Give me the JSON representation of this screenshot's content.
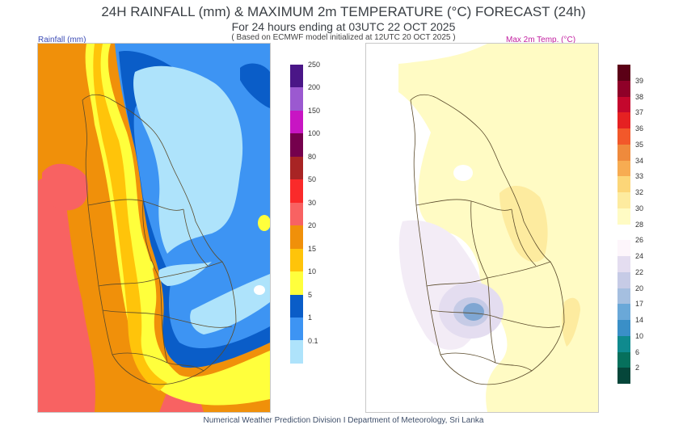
{
  "header": {
    "title": "24H RAINFALL (mm) & MAXIMUM 2m TEMPERATURE (°C) FORECAST (24h)",
    "subtitle": "For 24 hours ending at 03UTC 22 OCT 2025",
    "model_note": "( Based on ECMWF model initialized at 12UTC 20 OCT 2025 )"
  },
  "panels": {
    "rainfall": {
      "label": "Rainfall (mm)",
      "colorbar": {
        "ticks": [
          "0.1",
          "1",
          "5",
          "10",
          "15",
          "20",
          "30",
          "50",
          "80",
          "100",
          "150",
          "200",
          "250"
        ],
        "colors": [
          "#aee3fb",
          "#3d94f3",
          "#0a5dc8",
          "#ffff3c",
          "#ffc40a",
          "#f0900a",
          "#f86262",
          "#fa2a2a",
          "#a82424",
          "#75004d",
          "#c815c3",
          "#9b59d0",
          "#4a1687"
        ]
      }
    },
    "temperature": {
      "label": "Max 2m Temp. (°C)",
      "colorbar": {
        "ticks": [
          "2",
          "6",
          "10",
          "14",
          "17",
          "20",
          "22",
          "24",
          "26",
          "28",
          "30",
          "32",
          "33",
          "34",
          "35",
          "36",
          "37",
          "38",
          "39"
        ],
        "colors": [
          "#05463a",
          "#06705c",
          "#0f8a8e",
          "#3a8fc7",
          "#6aa8d8",
          "#a5bfe0",
          "#c6cbe6",
          "#e4ddf0",
          "#fdf6fb",
          "#ffffff",
          "#fffbc4",
          "#fdeb9f",
          "#fcd678",
          "#f7ac52",
          "#ef8a3c",
          "#f2582a",
          "#e52122",
          "#c4072d",
          "#8f0028",
          "#5b0016"
        ]
      }
    }
  },
  "footer": "Numerical Weather Prediction Division I Department of Meteorology, Sri Lanka",
  "colors": {
    "title_text": "#3a3f44",
    "rain_label": "#3b4bb5",
    "temp_label": "#c21fa0",
    "outline": "#5a4a2a"
  }
}
